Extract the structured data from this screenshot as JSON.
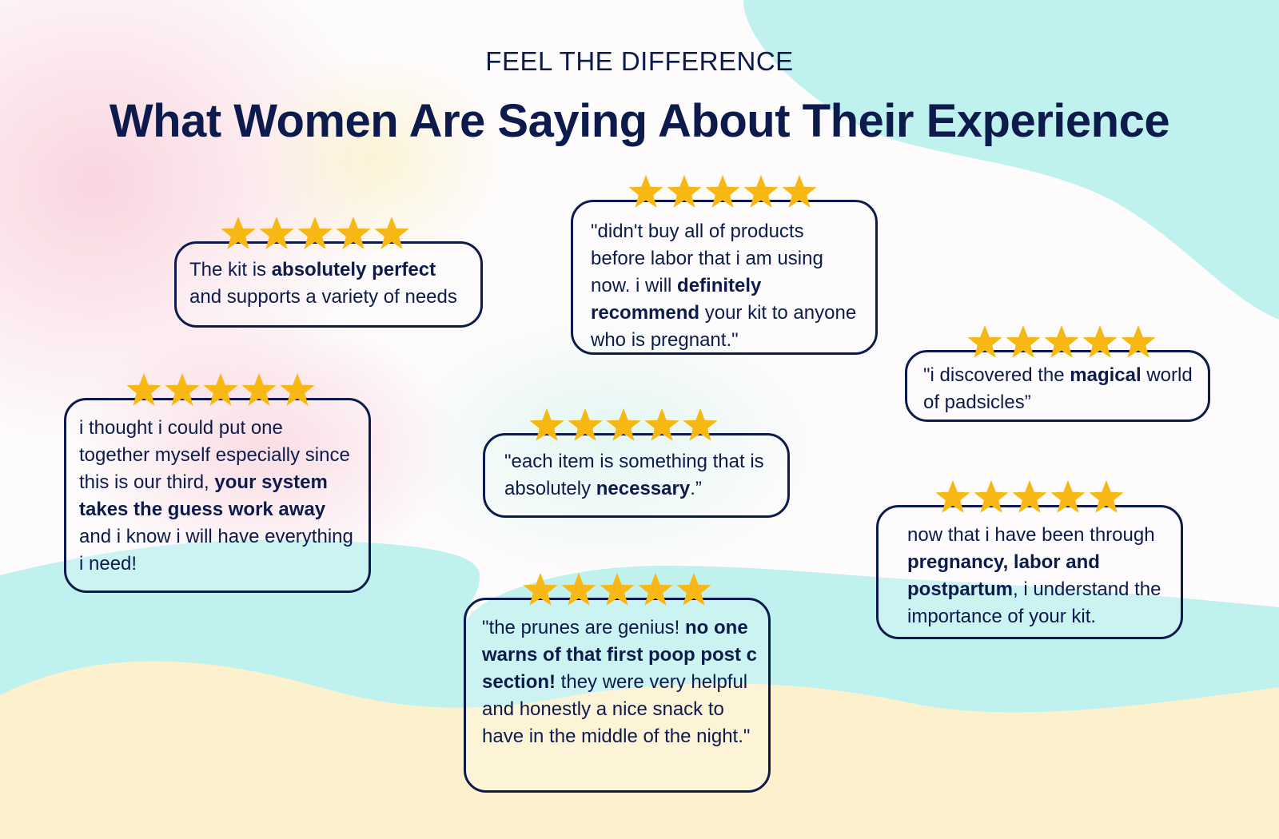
{
  "header": {
    "kicker": "FEEL THE DIFFERENCE",
    "title": "What Women Are Saying About Their Experience"
  },
  "colors": {
    "text": "#0d1b4c",
    "star": "#f8b814",
    "mint": "#b8eeec",
    "sand": "#fdf1cd"
  },
  "icons": {
    "rating": "star-icon"
  },
  "reviews": [
    {
      "id": "kit-perfect",
      "rating": 5,
      "segments": [
        {
          "text": "The kit is "
        },
        {
          "text": "absolutely perfect",
          "bold": true
        },
        {
          "text": " and supports a variety of needs"
        }
      ]
    },
    {
      "id": "didnt-buy",
      "rating": 5,
      "segments": [
        {
          "text": "\"didn't buy all of products before labor that i am using now. i will "
        },
        {
          "text": "definitely recommend",
          "bold": true
        },
        {
          "text": " your kit to anyone who is pregnant.\""
        }
      ]
    },
    {
      "id": "padsicles",
      "rating": 5,
      "segments": [
        {
          "text": "\"i discovered the "
        },
        {
          "text": "magical",
          "bold": true
        },
        {
          "text": " world of padsicles”"
        }
      ]
    },
    {
      "id": "put-together",
      "rating": 5,
      "segments": [
        {
          "text": "i thought i could put one together myself especially since this is our third, "
        },
        {
          "text": "your system takes the guess work away",
          "bold": true
        },
        {
          "text": " and i know i will have everything i need!"
        }
      ]
    },
    {
      "id": "each-item",
      "rating": 5,
      "segments": [
        {
          "text": "\"each item is something that is absolutely "
        },
        {
          "text": "necessary",
          "bold": true
        },
        {
          "text": ".”"
        }
      ]
    },
    {
      "id": "been-through",
      "rating": 5,
      "segments": [
        {
          "text": "now that i have been through "
        },
        {
          "text": "pregnancy, labor and postpartum",
          "bold": true
        },
        {
          "text": ", i understand the importance of your kit."
        }
      ]
    },
    {
      "id": "prunes",
      "rating": 5,
      "segments": [
        {
          "text": "\"the prunes are genius! "
        },
        {
          "text": "no one warns of that first poop post c section!",
          "bold": true
        },
        {
          "text": " they were very helpful and honestly a nice snack to have in the middle of the night.\""
        }
      ]
    }
  ]
}
